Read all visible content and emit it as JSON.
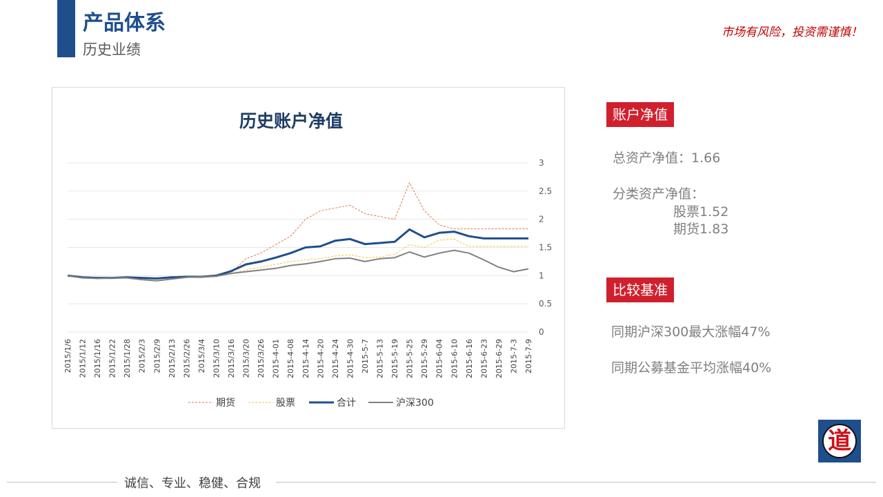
{
  "header": {
    "title": "产品体系",
    "subtitle": "历史业绩",
    "risk_warning": "市场有风险，投资需谨慎！"
  },
  "colors": {
    "brand_blue": "#1f4e8c",
    "badge_red": "#d0202e",
    "warning_red": "#c00000"
  },
  "chart_data": {
    "type": "line",
    "title": "历史账户净值",
    "y_axis_position": "right",
    "ylim": [
      0,
      3
    ],
    "yticks": [
      "0",
      "0.5",
      "1",
      "1.5",
      "2",
      "2.5",
      "3"
    ],
    "grid": true,
    "legend_position": "bottom",
    "x": [
      "2015/1/6",
      "2015/1/12",
      "2015/1/16",
      "2015/1/22",
      "2015/1/28",
      "2015/2/3",
      "2015/2/9",
      "2015/2/13",
      "2015/2/26",
      "2015/3/4",
      "2015/3/10",
      "2015/3/16",
      "2015/3/20",
      "2015/3/26",
      "2015-4-01",
      "2015-4-08",
      "2015-4-14",
      "2015-4-20",
      "2015-4-24",
      "2015-4-30",
      "2015-5-7",
      "2015-5-13",
      "2015-5-19",
      "2015-5-25",
      "2015-5-29",
      "2015-6-04",
      "2015-6-10",
      "2015-6-16",
      "2015-6-23",
      "2015-6-29",
      "2015-7-3",
      "2015-7-9"
    ],
    "series": [
      {
        "name": "期货",
        "color": "#e8734a",
        "style": "dashed",
        "width": 1,
        "values": [
          1.0,
          0.98,
          0.97,
          0.97,
          0.97,
          0.95,
          0.94,
          0.96,
          0.98,
          0.97,
          0.98,
          1.05,
          1.3,
          1.4,
          1.55,
          1.7,
          2.0,
          2.15,
          2.2,
          2.25,
          2.1,
          2.05,
          2.0,
          2.65,
          2.15,
          1.9,
          1.83,
          1.83,
          1.83,
          1.83,
          1.83,
          1.83
        ]
      },
      {
        "name": "股票",
        "color": "#f5c342",
        "style": "dashed",
        "width": 1,
        "values": [
          1.0,
          0.98,
          0.97,
          0.97,
          0.97,
          0.96,
          0.95,
          0.97,
          0.99,
          0.98,
          1.0,
          1.04,
          1.1,
          1.15,
          1.2,
          1.25,
          1.28,
          1.3,
          1.35,
          1.37,
          1.32,
          1.33,
          1.38,
          1.55,
          1.5,
          1.63,
          1.65,
          1.52,
          1.52,
          1.52,
          1.52,
          1.52
        ]
      },
      {
        "name": "合计",
        "color": "#1f4e8c",
        "style": "solid",
        "width": 3,
        "values": [
          1.0,
          0.97,
          0.96,
          0.96,
          0.97,
          0.96,
          0.95,
          0.97,
          0.98,
          0.98,
          1.0,
          1.08,
          1.2,
          1.25,
          1.32,
          1.4,
          1.5,
          1.52,
          1.62,
          1.65,
          1.56,
          1.58,
          1.6,
          1.82,
          1.68,
          1.76,
          1.78,
          1.7,
          1.66,
          1.66,
          1.66,
          1.66
        ]
      },
      {
        "name": "沪深300",
        "color": "#808080",
        "style": "solid",
        "width": 2,
        "values": [
          1.0,
          0.96,
          0.95,
          0.96,
          0.96,
          0.93,
          0.91,
          0.94,
          0.97,
          0.98,
          0.99,
          1.04,
          1.07,
          1.1,
          1.13,
          1.18,
          1.21,
          1.25,
          1.3,
          1.31,
          1.25,
          1.3,
          1.32,
          1.42,
          1.33,
          1.4,
          1.45,
          1.4,
          1.28,
          1.15,
          1.07,
          1.12
        ]
      }
    ]
  },
  "account_nav": {
    "badge": "账户净值",
    "total_label": "总资产净值：1.66",
    "category_label": "分类资产净值：",
    "stock_label": "股票1.52",
    "futures_label": "期货1.83"
  },
  "benchmark": {
    "badge": "比较基准",
    "csi300_text": "同期沪深300最大涨幅47%",
    "fund_text": "同期公募基金平均涨幅40%"
  },
  "logo": {
    "char": "道",
    "icon": "dao-logo-icon"
  },
  "footer": {
    "motto": "诚信、专业、稳健、合规"
  }
}
